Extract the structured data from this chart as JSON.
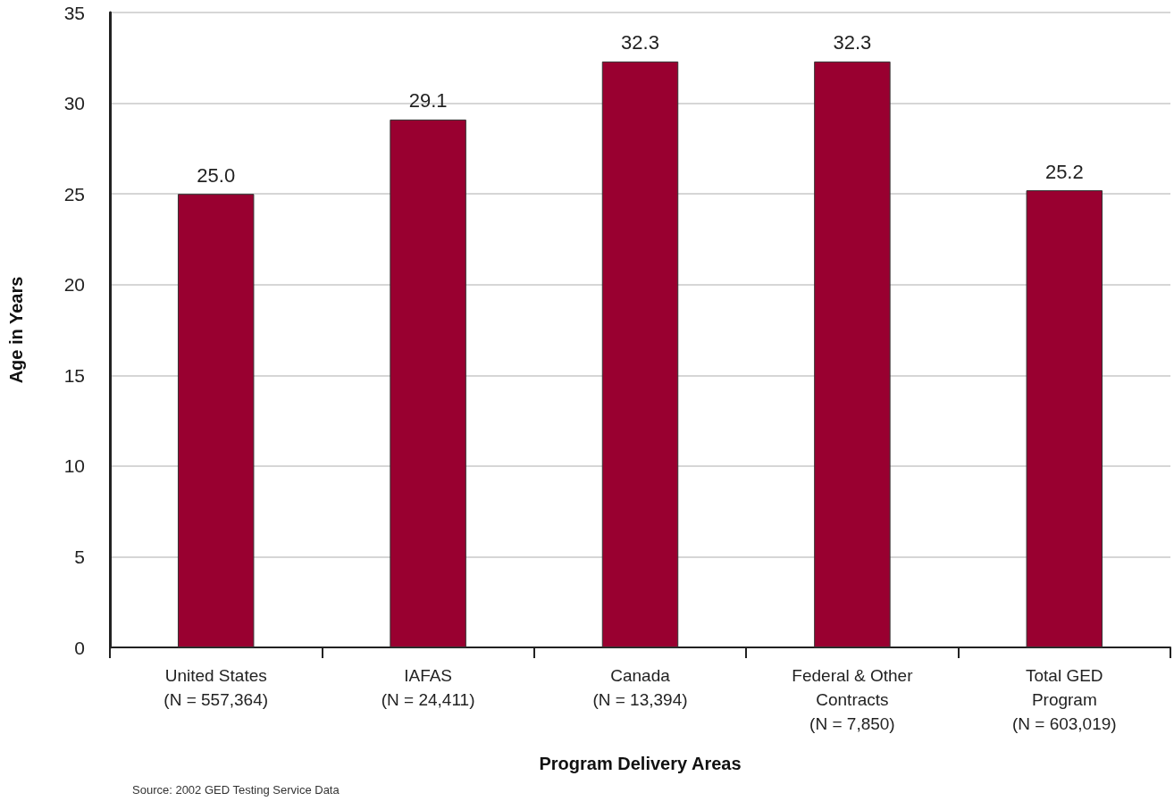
{
  "chart_data": {
    "type": "bar",
    "xlabel": "Program Delivery Areas",
    "ylabel": "Age in Years",
    "categories": [
      "United States\n(N = 557,364)",
      "IAFAS\n(N = 24,411)",
      "Canada\n(N = 13,394)",
      "Federal & Other\nContracts\n(N = 7,850)",
      "Total GED\nProgram\n(N = 603,019)"
    ],
    "values": [
      25.0,
      29.1,
      32.3,
      32.3,
      25.2
    ],
    "value_labels": [
      "25.0",
      "29.1",
      "32.3",
      "32.3",
      "25.2"
    ],
    "color": "#990030",
    "ylim": [
      0,
      35
    ],
    "yticks": [
      0,
      5,
      10,
      15,
      20,
      25,
      30,
      35
    ],
    "grid": "y",
    "annotations": [
      "Source: 2002 GED Testing Service Data"
    ]
  }
}
